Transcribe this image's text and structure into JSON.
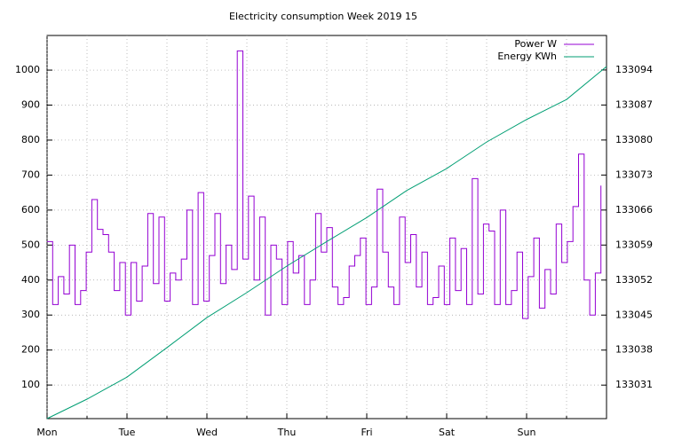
{
  "chart_data": {
    "type": "line",
    "title": "Electricity consumption Week 2019 15",
    "xlim": [
      0,
      7
    ],
    "xticks": [
      {
        "value": 0,
        "label": "Mon"
      },
      {
        "value": 1,
        "label": "Tue"
      },
      {
        "value": 2,
        "label": "Wed"
      },
      {
        "value": 3,
        "label": "Thu"
      },
      {
        "value": 4,
        "label": "Fri"
      },
      {
        "value": 5,
        "label": "Sat"
      },
      {
        "value": 6,
        "label": "Sun"
      }
    ],
    "xminorticks": [
      0.5,
      1.5,
      2.5,
      3.5,
      4.5,
      5.5,
      6.5
    ],
    "ylim": [
      4,
      1099
    ],
    "yticks": [
      100,
      200,
      300,
      400,
      500,
      600,
      700,
      800,
      900,
      1000
    ],
    "y2lim": [
      133024.3,
      133100.9
    ],
    "y2ticks": [
      133031,
      133038,
      133045,
      133052,
      133059,
      133066,
      133073,
      133080,
      133087,
      133094
    ],
    "grid": true,
    "legend": "top-right",
    "series": [
      {
        "name": "Power W",
        "color": "#9400d3",
        "style": "steps",
        "x": [
          0,
          0.07,
          0.14,
          0.21,
          0.28,
          0.35,
          0.42,
          0.49,
          0.56,
          0.63,
          0.7,
          0.77,
          0.84,
          0.91,
          0.98,
          1.05,
          1.12,
          1.19,
          1.26,
          1.33,
          1.4,
          1.47,
          1.54,
          1.61,
          1.68,
          1.75,
          1.82,
          1.89,
          1.96,
          2.03,
          2.1,
          2.17,
          2.24,
          2.31,
          2.38,
          2.45,
          2.52,
          2.59,
          2.66,
          2.73,
          2.8,
          2.87,
          2.94,
          3.01,
          3.08,
          3.15,
          3.22,
          3.29,
          3.36,
          3.43,
          3.5,
          3.57,
          3.64,
          3.71,
          3.78,
          3.85,
          3.92,
          3.99,
          4.06,
          4.13,
          4.2,
          4.27,
          4.34,
          4.41,
          4.48,
          4.55,
          4.62,
          4.69,
          4.76,
          4.83,
          4.9,
          4.97,
          5.04,
          5.11,
          5.18,
          5.25,
          5.32,
          5.39,
          5.46,
          5.53,
          5.6,
          5.67,
          5.74,
          5.81,
          5.88,
          5.95,
          6.02,
          6.09,
          6.16,
          6.23,
          6.3,
          6.37,
          6.44,
          6.51,
          6.58,
          6.65,
          6.72,
          6.79,
          6.86,
          6.93
        ],
        "values": [
          510,
          330,
          410,
          360,
          500,
          330,
          370,
          480,
          630,
          545,
          530,
          480,
          370,
          450,
          300,
          450,
          340,
          440,
          590,
          390,
          580,
          340,
          420,
          400,
          460,
          600,
          330,
          650,
          340,
          470,
          590,
          390,
          500,
          430,
          1055,
          460,
          640,
          400,
          580,
          300,
          500,
          460,
          330,
          510,
          420,
          470,
          330,
          400,
          590,
          480,
          550,
          380,
          330,
          350,
          440,
          470,
          520,
          330,
          380,
          660,
          480,
          380,
          330,
          580,
          450,
          530,
          380,
          480,
          330,
          350,
          440,
          330,
          520,
          370,
          490,
          330,
          690,
          360,
          560,
          540,
          330,
          600,
          330,
          370,
          480,
          290,
          410,
          520,
          320,
          430,
          360,
          560,
          450,
          510,
          610,
          760,
          400,
          300,
          420,
          670
        ]
      },
      {
        "name": "Energy KWh",
        "color": "#009e73",
        "axis": "y2",
        "style": "lines",
        "x": [
          0,
          0.5,
          1,
          1.5,
          2,
          2.5,
          3,
          3.5,
          4,
          4.5,
          5,
          5.5,
          6,
          6.5,
          7
        ],
        "values": [
          133024.3,
          133028.2,
          133032.6,
          133038.5,
          133044.5,
          133049.5,
          133054.8,
          133059.7,
          133064.5,
          133069.9,
          133074.3,
          133079.6,
          133084.1,
          133088.1,
          133094.7
        ]
      }
    ]
  }
}
